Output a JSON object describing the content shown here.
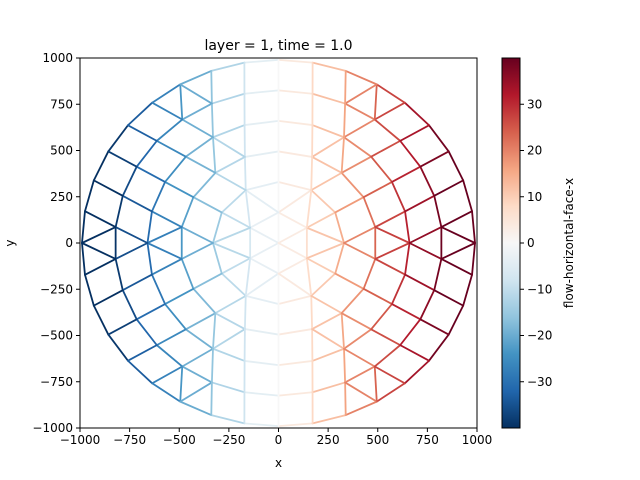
{
  "chart_data": {
    "type": "mesh_edge_colormap",
    "title": "layer = 1, time = 1.0",
    "xlabel": "x",
    "ylabel": "y",
    "xlim": [
      -1000,
      1000
    ],
    "ylim": [
      -1000,
      1000
    ],
    "xticks": [
      -1000,
      -750,
      -500,
      -250,
      0,
      250,
      500,
      750,
      1000
    ],
    "yticks": [
      -1000,
      -750,
      -500,
      -250,
      0,
      250,
      500,
      750,
      1000
    ],
    "xtick_labels": [
      "−1000",
      "−750",
      "−500",
      "−250",
      "0",
      "250",
      "500",
      "750",
      "1000"
    ],
    "ytick_labels": [
      "−1000",
      "−750",
      "−500",
      "−250",
      "0",
      "250",
      "500",
      "750",
      "1000"
    ],
    "grid": false,
    "colorbar": {
      "label": "flow-horizontal-face-x",
      "colormap": "RdBu_r",
      "vmin": -40,
      "vmax": 40,
      "ticks": [
        -30,
        -20,
        -10,
        0,
        10,
        20,
        30
      ],
      "tick_labels": [
        "−30",
        "−20",
        "−10",
        "0",
        "10",
        "20",
        "30"
      ]
    },
    "mesh": {
      "description": "Triangular mesh; colour of each edge encodes flow-horizontal-face-x (approx. proportional to x).",
      "rings_radius": [
        0,
        165,
        330,
        495,
        660,
        825,
        990
      ],
      "nodes_per_ring": [
        1,
        6,
        12,
        18,
        24,
        30,
        36
      ],
      "value_gain": 0.048
    }
  }
}
